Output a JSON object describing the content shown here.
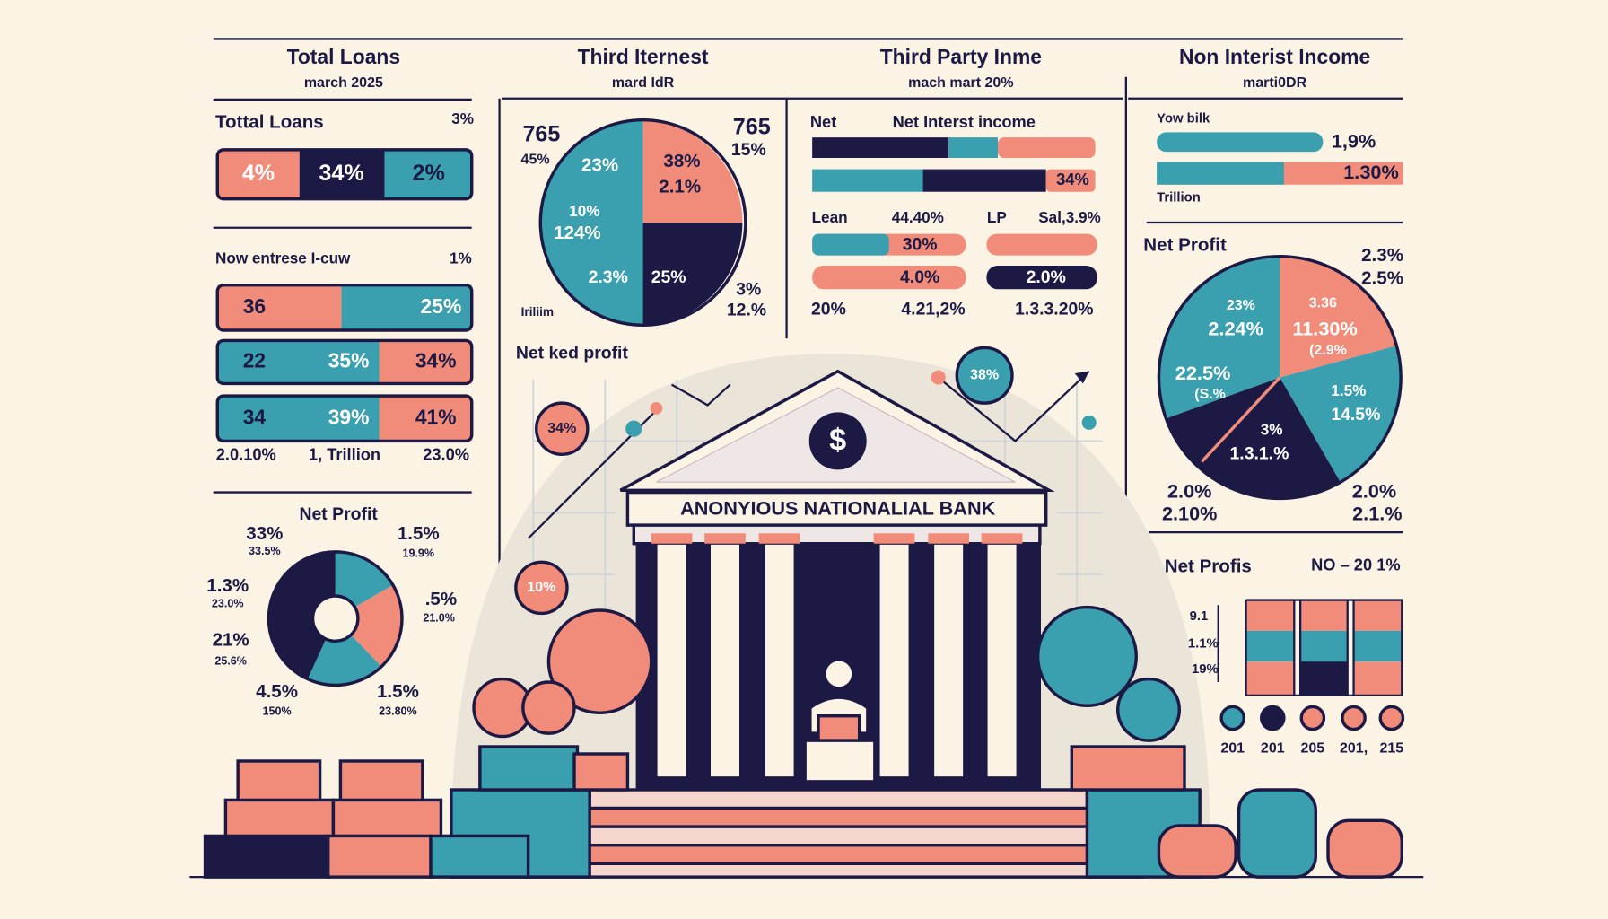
{
  "headers": [
    {
      "title": "Total Loans",
      "subtitle": "march 2025"
    },
    {
      "title": "Third Iternest",
      "subtitle": "mard IdR"
    },
    {
      "title": "Third Party Inme",
      "subtitle": "mach mart 20%"
    },
    {
      "title": "Non Interist Income",
      "subtitle": "marti0DR"
    }
  ],
  "loans": {
    "title": "Tottal Loans",
    "note": "3%",
    "bar": [
      "4%",
      "34%",
      "2%"
    ]
  },
  "income": {
    "title": "Now entrese I-cuw",
    "note": "1%",
    "rows": [
      [
        "36",
        "25%"
      ],
      [
        "22",
        "35%",
        "34%"
      ],
      [
        "34",
        "39%",
        "41%"
      ]
    ],
    "footer": [
      "2.0.10%",
      "1, Trillion",
      "23.0%"
    ]
  },
  "donut": {
    "title": "Net Profit",
    "labels": [
      "33%",
      "33.5%",
      "1.5%",
      "19.9%",
      "1.3%",
      "23.0%",
      ".5%",
      "21.0%",
      "21%",
      "25.6%",
      "4.5%",
      "150%",
      "1.5%",
      "23.80%"
    ]
  },
  "pie1": {
    "labels": [
      "765",
      "45%",
      "23%",
      "38%",
      "2.1%",
      "10%",
      "124%",
      "2.3%",
      "25%",
      "765",
      "15%",
      "3%",
      "12.%",
      "Iriliim"
    ]
  },
  "trend": {
    "title": "Net ked profit",
    "bubbles": [
      "34%",
      "38%",
      "10%"
    ]
  },
  "interest": {
    "label": "Net",
    "title": "Net Interst income",
    "bar_label": "34%",
    "row_labels": [
      "Lean",
      "44.40%",
      "LP",
      "Sal,3.9%"
    ],
    "bars": [
      "30%",
      "4.0%",
      "2.0%"
    ],
    "footer": [
      "20%",
      "4.21,2%",
      "1.3.3.20%"
    ]
  },
  "bank": {
    "name": "ANONYIOUS NATIONALIAL BANK",
    "symbol": "$"
  },
  "nonint": {
    "label": "Yow bilk",
    "bars": [
      "1,9%",
      "1.30%"
    ],
    "unit": "Trillion"
  },
  "pie2": {
    "title": "Net Profit",
    "notes": [
      "2.3%",
      "2.5%"
    ],
    "labels": [
      "23%",
      "2.24%",
      "3.36",
      "11.30%",
      "(2.9%",
      "22.5%",
      "(S.%",
      "1.5%",
      "14.5%",
      "3%",
      "1.3.1.%",
      "2.0%",
      "2.10%",
      "2.0%",
      "2.1.%"
    ]
  },
  "profits": {
    "title": "Net Profis",
    "note": "NO – 20 1%",
    "axis": [
      "9.1",
      "1.1%",
      "19%"
    ],
    "years": [
      "201",
      "201",
      "205",
      "201,",
      "215"
    ]
  }
}
